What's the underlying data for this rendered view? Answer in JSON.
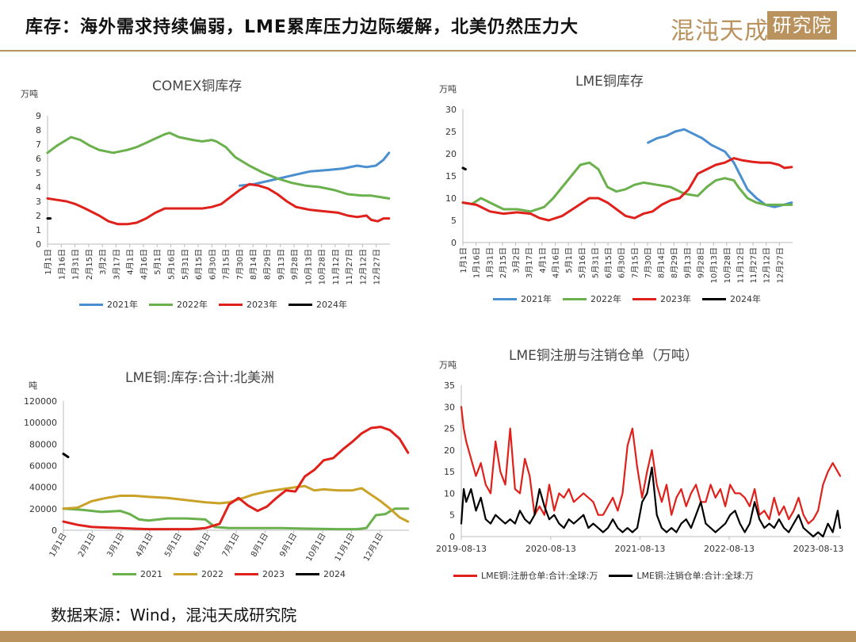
{
  "header": {
    "title": "库存：海外需求持续偏弱，LME累库压力边际缓解，北美仍然压力大",
    "logo_main": "混沌天成",
    "logo_sub": "研究院"
  },
  "colors": {
    "c2021": "#4a8fd0",
    "c2022": "#6ab04c",
    "c2023": "#e0211b",
    "c2024": "#000000",
    "c2022_na": "#c9a227",
    "brand": "#b9925e"
  },
  "footer": {
    "source": "数据来源：Wind，混沌天成研究院"
  },
  "chart_data": [
    {
      "id": "comex",
      "type": "line",
      "title": "COMEX铜库存",
      "unit": "万吨",
      "ylim": [
        0,
        9
      ],
      "yticks": [
        0,
        1,
        2,
        3,
        4,
        5,
        6,
        7,
        8,
        9
      ],
      "xlim": [
        0,
        365
      ],
      "xticks": [
        "1月1日",
        "1月16日",
        "1月31日",
        "2月15日",
        "3月2日",
        "3月17日",
        "4月1日",
        "4月16日",
        "5月1日",
        "5月16日",
        "5月31日",
        "6月15日",
        "6月30日",
        "7月15日",
        "7月30日",
        "8月14日",
        "8月29日",
        "9月13日",
        "9月28日",
        "10月13日",
        "10月28日",
        "11月12日",
        "11月27日",
        "12月12日",
        "12月27日"
      ],
      "series": [
        {
          "name": "2021年",
          "color_key": "c2021",
          "x": [
            205,
            220,
            240,
            260,
            280,
            300,
            315,
            330,
            340,
            350,
            358,
            364
          ],
          "y": [
            4.1,
            4.2,
            4.5,
            4.8,
            5.1,
            5.2,
            5.3,
            5.5,
            5.4,
            5.5,
            5.9,
            6.4
          ]
        },
        {
          "name": "2022年",
          "color_key": "c2022",
          "x": [
            0,
            10,
            20,
            25,
            35,
            45,
            55,
            70,
            85,
            95,
            105,
            115,
            125,
            130,
            140,
            155,
            165,
            175,
            180,
            190,
            200,
            215,
            230,
            245,
            260,
            275,
            290,
            305,
            320,
            335,
            345,
            364
          ],
          "y": [
            6.4,
            6.9,
            7.3,
            7.5,
            7.3,
            6.9,
            6.6,
            6.4,
            6.6,
            6.8,
            7.1,
            7.4,
            7.7,
            7.8,
            7.5,
            7.3,
            7.2,
            7.3,
            7.2,
            6.8,
            6.1,
            5.5,
            5.0,
            4.6,
            4.3,
            4.1,
            4.0,
            3.8,
            3.5,
            3.4,
            3.4,
            3.2
          ]
        },
        {
          "name": "2023年",
          "color_key": "c2023",
          "x": [
            0,
            10,
            20,
            30,
            40,
            55,
            65,
            75,
            85,
            95,
            105,
            115,
            125,
            135,
            145,
            155,
            165,
            175,
            185,
            195,
            205,
            215,
            225,
            235,
            245,
            255,
            265,
            280,
            295,
            310,
            320,
            330,
            340,
            345,
            352,
            358,
            364
          ],
          "y": [
            3.2,
            3.1,
            3.0,
            2.8,
            2.5,
            2.0,
            1.6,
            1.4,
            1.4,
            1.5,
            1.8,
            2.2,
            2.5,
            2.5,
            2.5,
            2.5,
            2.5,
            2.6,
            2.8,
            3.3,
            3.8,
            4.2,
            4.1,
            3.9,
            3.5,
            3.0,
            2.6,
            2.4,
            2.3,
            2.2,
            2.0,
            1.9,
            2.0,
            1.7,
            1.6,
            1.8,
            1.8
          ]
        },
        {
          "name": "2024年",
          "color_key": "c2024",
          "x": [
            0,
            3
          ],
          "y": [
            1.8,
            1.8
          ]
        }
      ]
    },
    {
      "id": "lme",
      "type": "line",
      "title": "LME铜库存",
      "unit": "万吨",
      "ylim": [
        0,
        30
      ],
      "yticks": [
        0,
        5,
        10,
        15,
        20,
        25,
        30
      ],
      "xlim": [
        0,
        365
      ],
      "xticks": [
        "1月1日",
        "1月16日",
        "1月31日",
        "2月15日",
        "3月2日",
        "3月17日",
        "4月1日",
        "4月16日",
        "5月1日",
        "5月16日",
        "5月31日",
        "6月15日",
        "6月30日",
        "7月15日",
        "7月30日",
        "8月14日",
        "8月29日",
        "9月13日",
        "9月28日",
        "10月13日",
        "10月28日",
        "11月12日",
        "11月27日",
        "12月12日",
        "12月27日"
      ],
      "series": [
        {
          "name": "2021年",
          "color_key": "c2021",
          "x": [
            205,
            210,
            215,
            225,
            235,
            245,
            255,
            265,
            275,
            290,
            300,
            305,
            315,
            325,
            335,
            345,
            355,
            364
          ],
          "y": [
            22.5,
            23.0,
            23.5,
            24.0,
            25.0,
            25.5,
            24.5,
            23.5,
            22.0,
            20.5,
            18.0,
            16.0,
            12.0,
            10.0,
            8.5,
            8.0,
            8.5,
            9.0
          ]
        },
        {
          "name": "2022年",
          "color_key": "c2022",
          "x": [
            0,
            10,
            20,
            30,
            45,
            60,
            75,
            90,
            100,
            110,
            120,
            130,
            140,
            150,
            160,
            170,
            180,
            190,
            200,
            215,
            230,
            245,
            260,
            270,
            280,
            290,
            300,
            305,
            315,
            325,
            335,
            345,
            355,
            364
          ],
          "y": [
            9.0,
            8.7,
            10.0,
            9.0,
            7.5,
            7.5,
            7.0,
            8.0,
            10.0,
            12.5,
            15.0,
            17.5,
            18.0,
            16.5,
            12.5,
            11.5,
            12.0,
            13.0,
            13.5,
            13.0,
            12.5,
            11.0,
            10.5,
            12.5,
            14.0,
            14.5,
            14.0,
            12.5,
            10.0,
            9.0,
            8.5,
            8.5,
            8.5,
            8.5
          ]
        },
        {
          "name": "2023年",
          "color_key": "c2023",
          "x": [
            0,
            15,
            30,
            45,
            60,
            75,
            85,
            95,
            110,
            125,
            140,
            150,
            160,
            170,
            180,
            190,
            200,
            210,
            220,
            230,
            240,
            250,
            260,
            270,
            280,
            290,
            300,
            310,
            320,
            330,
            340,
            350,
            356,
            364
          ],
          "y": [
            9.0,
            8.5,
            7.0,
            6.5,
            6.8,
            6.5,
            5.5,
            5.0,
            6.0,
            8.0,
            10.0,
            10.0,
            9.0,
            7.5,
            6.0,
            5.5,
            6.5,
            7.0,
            8.5,
            9.5,
            10.0,
            12.0,
            15.5,
            16.5,
            17.5,
            18.0,
            19.0,
            18.5,
            18.2,
            18.0,
            18.0,
            17.5,
            16.8,
            17.0
          ]
        },
        {
          "name": "2024年",
          "color_key": "c2024",
          "x": [
            0,
            3
          ],
          "y": [
            16.8,
            16.5
          ]
        }
      ]
    },
    {
      "id": "lme_na",
      "type": "line",
      "title": "LME铜:库存:合计:北美洲",
      "unit": "吨",
      "ylim": [
        0,
        120000
      ],
      "yticks": [
        0,
        20000,
        40000,
        60000,
        80000,
        100000,
        120000
      ],
      "xlim": [
        0,
        365
      ],
      "xticks": [
        "1月1日",
        "2月1日",
        "3月1日",
        "4月1日",
        "5月1日",
        "6月1日",
        "7月1日",
        "8月1日",
        "9月1日",
        "10月1日",
        "11月1日",
        "12月1日"
      ],
      "series": [
        {
          "name": "2021",
          "color_key": "c2022",
          "x": [
            0,
            20,
            40,
            60,
            70,
            80,
            90,
            110,
            130,
            150,
            160,
            175,
            190,
            210,
            230,
            260,
            290,
            310,
            320,
            330,
            340,
            350,
            364
          ],
          "y": [
            20000,
            19000,
            17000,
            18000,
            15000,
            10000,
            9000,
            11000,
            11000,
            10000,
            3000,
            2000,
            2000,
            2000,
            2000,
            1500,
            1000,
            1000,
            2000,
            14000,
            15000,
            20000,
            20000
          ]
        },
        {
          "name": "2022",
          "color_key": "c2022_na",
          "x": [
            0,
            15,
            30,
            45,
            60,
            75,
            90,
            110,
            130,
            150,
            165,
            175,
            190,
            200,
            215,
            230,
            245,
            255,
            265,
            275,
            290,
            305,
            315,
            325,
            335,
            345,
            355,
            364
          ],
          "y": [
            20000,
            21000,
            27000,
            30000,
            32000,
            32000,
            31000,
            30000,
            28000,
            26000,
            25000,
            26000,
            30000,
            33000,
            36000,
            38000,
            40000,
            41000,
            37000,
            38000,
            37000,
            37000,
            39000,
            33000,
            27000,
            20000,
            12000,
            8000
          ]
        },
        {
          "name": "2023",
          "color_key": "c2023",
          "x": [
            0,
            15,
            30,
            45,
            60,
            75,
            90,
            105,
            120,
            135,
            150,
            165,
            175,
            185,
            195,
            205,
            215,
            225,
            235,
            245,
            255,
            265,
            275,
            285,
            295,
            305,
            315,
            325,
            335,
            345,
            355,
            364
          ],
          "y": [
            8000,
            5000,
            3000,
            2500,
            2000,
            1500,
            1000,
            1000,
            1000,
            1000,
            2000,
            6000,
            24000,
            30000,
            23000,
            18000,
            22000,
            30000,
            37000,
            36000,
            50000,
            56000,
            65000,
            67000,
            75000,
            82000,
            90000,
            95000,
            96000,
            93000,
            85000,
            72000
          ]
        },
        {
          "name": "2024",
          "color_key": "c2024",
          "x": [
            0,
            5
          ],
          "y": [
            71000,
            68000
          ]
        }
      ]
    },
    {
      "id": "warrants",
      "type": "line",
      "title": "LME铜注册与注销仓单（万吨）",
      "unit": "万吨",
      "ylim": [
        0,
        35
      ],
      "yticks": [
        0,
        5,
        10,
        15,
        20,
        25,
        30,
        35
      ],
      "xlim": [
        0,
        1550
      ],
      "xticks": [
        "2019-08-13",
        "2020-08-13",
        "2021-08-13",
        "2022-08-13",
        "2023-08-13"
      ],
      "xtick_pos": [
        0,
        366,
        731,
        1096,
        1461
      ],
      "series": [
        {
          "name": "LME铜:注册仓单:合计:全球:万",
          "color_key": "c2023",
          "x": [
            0,
            10,
            20,
            40,
            60,
            80,
            100,
            120,
            140,
            160,
            180,
            200,
            220,
            240,
            260,
            280,
            300,
            320,
            340,
            360,
            380,
            400,
            420,
            440,
            460,
            480,
            500,
            520,
            540,
            560,
            580,
            600,
            620,
            640,
            660,
            680,
            700,
            720,
            740,
            760,
            780,
            800,
            820,
            840,
            860,
            880,
            900,
            920,
            940,
            960,
            980,
            1000,
            1020,
            1040,
            1060,
            1080,
            1100,
            1120,
            1140,
            1160,
            1180,
            1200,
            1220,
            1240,
            1260,
            1280,
            1300,
            1320,
            1340,
            1360,
            1380,
            1400,
            1420,
            1440,
            1460,
            1480,
            1500,
            1520,
            1540,
            1550
          ],
          "y": [
            30,
            25,
            22,
            18,
            14,
            17,
            12,
            10,
            22,
            15,
            12,
            25,
            11,
            10,
            18,
            14,
            5,
            7,
            5,
            12,
            6,
            10,
            9,
            11,
            8,
            9,
            10,
            9,
            8,
            5,
            5,
            7,
            9,
            6,
            10,
            21,
            25,
            16,
            9,
            15,
            20,
            12,
            8,
            12,
            5,
            9,
            11,
            7,
            10,
            12,
            8,
            8,
            12,
            9,
            11,
            7,
            12,
            10,
            10,
            9,
            7,
            11,
            5,
            6,
            4,
            9,
            5,
            7,
            4,
            6,
            9,
            5,
            3,
            4,
            6,
            12,
            15,
            17,
            15,
            14
          ]
        },
        {
          "name": "LME铜:注销仓单:合计:全球:万",
          "color_key": "c2024",
          "x": [
            0,
            10,
            20,
            40,
            60,
            80,
            100,
            120,
            140,
            160,
            180,
            200,
            220,
            240,
            260,
            280,
            300,
            320,
            340,
            360,
            380,
            400,
            420,
            440,
            460,
            480,
            500,
            520,
            540,
            560,
            580,
            600,
            620,
            640,
            660,
            680,
            700,
            720,
            740,
            760,
            780,
            800,
            820,
            840,
            860,
            880,
            900,
            920,
            940,
            960,
            980,
            1000,
            1020,
            1040,
            1060,
            1080,
            1100,
            1120,
            1140,
            1160,
            1180,
            1200,
            1220,
            1240,
            1260,
            1280,
            1300,
            1320,
            1340,
            1360,
            1380,
            1400,
            1420,
            1440,
            1460,
            1480,
            1500,
            1520,
            1540,
            1550
          ],
          "y": [
            3,
            11,
            8,
            11,
            6,
            9,
            4,
            3,
            5,
            4,
            3,
            4,
            3,
            6,
            4,
            3,
            5,
            11,
            7,
            4,
            5,
            3,
            2,
            4,
            3,
            4,
            5,
            2,
            3,
            2,
            1,
            2,
            4,
            2,
            1,
            2,
            1,
            2,
            8,
            10,
            16,
            5,
            2,
            1,
            2,
            1,
            3,
            4,
            2,
            5,
            8,
            3,
            2,
            1,
            2,
            3,
            5,
            6,
            3,
            1,
            3,
            8,
            4,
            2,
            3,
            2,
            4,
            2,
            1,
            3,
            5,
            2,
            1,
            0,
            1,
            0,
            3,
            1,
            6,
            2
          ]
        }
      ]
    }
  ]
}
